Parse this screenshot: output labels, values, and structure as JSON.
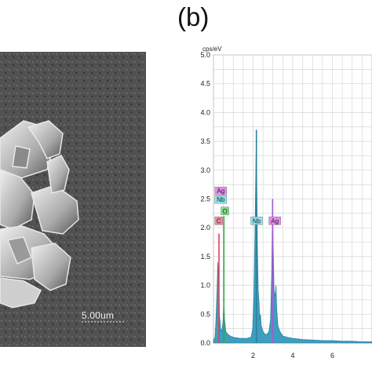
{
  "panel_label": "(b)",
  "sem": {
    "scale_bar_text": "5.00um"
  },
  "chart_data": {
    "type": "line",
    "title": "",
    "xlabel": "",
    "ylabel": "cps/eV",
    "xlim": [
      0,
      8
    ],
    "ylim": [
      0,
      5
    ],
    "yticks": [
      "0.0",
      "0.5",
      "1.0",
      "1.5",
      "2.0",
      "2.5",
      "3.0",
      "3.5",
      "4.0",
      "4.5",
      "5.0"
    ],
    "xticks": [
      "2",
      "4",
      "6"
    ],
    "grid": true,
    "colors": {
      "spectrum_fill": "#3d9fbf",
      "spectrum_line": "#2a7f9c",
      "grid": "#d6d6d6"
    },
    "spectrum": [
      [
        0.0,
        0.05
      ],
      [
        0.08,
        0.1
      ],
      [
        0.12,
        0.35
      ],
      [
        0.18,
        0.9
      ],
      [
        0.22,
        1.4
      ],
      [
        0.26,
        1.1
      ],
      [
        0.3,
        0.5
      ],
      [
        0.36,
        0.25
      ],
      [
        0.42,
        0.2
      ],
      [
        0.48,
        0.35
      ],
      [
        0.525,
        0.75
      ],
      [
        0.56,
        0.4
      ],
      [
        0.62,
        0.2
      ],
      [
        0.7,
        0.16
      ],
      [
        0.8,
        0.13
      ],
      [
        0.9,
        0.11
      ],
      [
        1.0,
        0.1
      ],
      [
        1.1,
        0.09
      ],
      [
        1.2,
        0.09
      ],
      [
        1.3,
        0.08
      ],
      [
        1.4,
        0.08
      ],
      [
        1.5,
        0.08
      ],
      [
        1.6,
        0.08
      ],
      [
        1.7,
        0.08
      ],
      [
        1.8,
        0.09
      ],
      [
        1.9,
        0.1
      ],
      [
        1.98,
        0.25
      ],
      [
        2.04,
        0.8
      ],
      [
        2.1,
        2.0
      ],
      [
        2.14,
        3.0
      ],
      [
        2.166,
        3.7
      ],
      [
        2.19,
        2.6
      ],
      [
        2.22,
        1.6
      ],
      [
        2.26,
        0.9
      ],
      [
        2.3,
        0.7
      ],
      [
        2.33,
        0.4
      ],
      [
        2.37,
        0.5
      ],
      [
        2.41,
        0.3
      ],
      [
        2.5,
        0.2
      ],
      [
        2.6,
        0.15
      ],
      [
        2.7,
        0.15
      ],
      [
        2.8,
        0.2
      ],
      [
        2.88,
        0.4
      ],
      [
        2.94,
        1.2
      ],
      [
        2.984,
        2.5
      ],
      [
        3.01,
        1.7
      ],
      [
        3.06,
        0.9
      ],
      [
        3.12,
        0.8
      ],
      [
        3.151,
        1.0
      ],
      [
        3.19,
        0.6
      ],
      [
        3.25,
        0.3
      ],
      [
        3.35,
        0.2
      ],
      [
        3.5,
        0.12
      ],
      [
        3.7,
        0.1
      ],
      [
        4.0,
        0.08
      ],
      [
        4.5,
        0.06
      ],
      [
        5.0,
        0.05
      ],
      [
        5.5,
        0.04
      ],
      [
        6.0,
        0.04
      ],
      [
        6.5,
        0.03
      ],
      [
        7.0,
        0.03
      ],
      [
        7.5,
        0.02
      ],
      [
        8.0,
        0.02
      ]
    ],
    "peak_lines": [
      {
        "label": "C",
        "x": 0.277,
        "y": 1.9,
        "color": "#e0405a"
      },
      {
        "label": "O",
        "x": 0.525,
        "y": 2.2,
        "color": "#35a845"
      },
      {
        "label": "Nb",
        "x": 2.166,
        "y": 3.7,
        "color": "#2a7f9c"
      },
      {
        "label": "Ag",
        "x": 2.984,
        "y": 2.5,
        "color": "#a45bd0"
      }
    ],
    "peak_labels": [
      {
        "label": "Ag",
        "x": 0.07,
        "y": 2.6,
        "fill": "#e58bf0"
      },
      {
        "label": "Nb",
        "x": 0.07,
        "y": 2.45,
        "fill": "#8fe3f0"
      },
      {
        "label": "O",
        "x": 0.38,
        "y": 2.25,
        "fill": "#7fe08a"
      },
      {
        "label": "C",
        "x": 0.07,
        "y": 2.08,
        "fill": "#f28aa0"
      },
      {
        "label": "Nb",
        "x": 1.88,
        "y": 2.08,
        "fill": "#8fe3f0"
      },
      {
        "label": "Ag",
        "x": 2.8,
        "y": 2.08,
        "fill": "#e58bf0"
      }
    ]
  }
}
